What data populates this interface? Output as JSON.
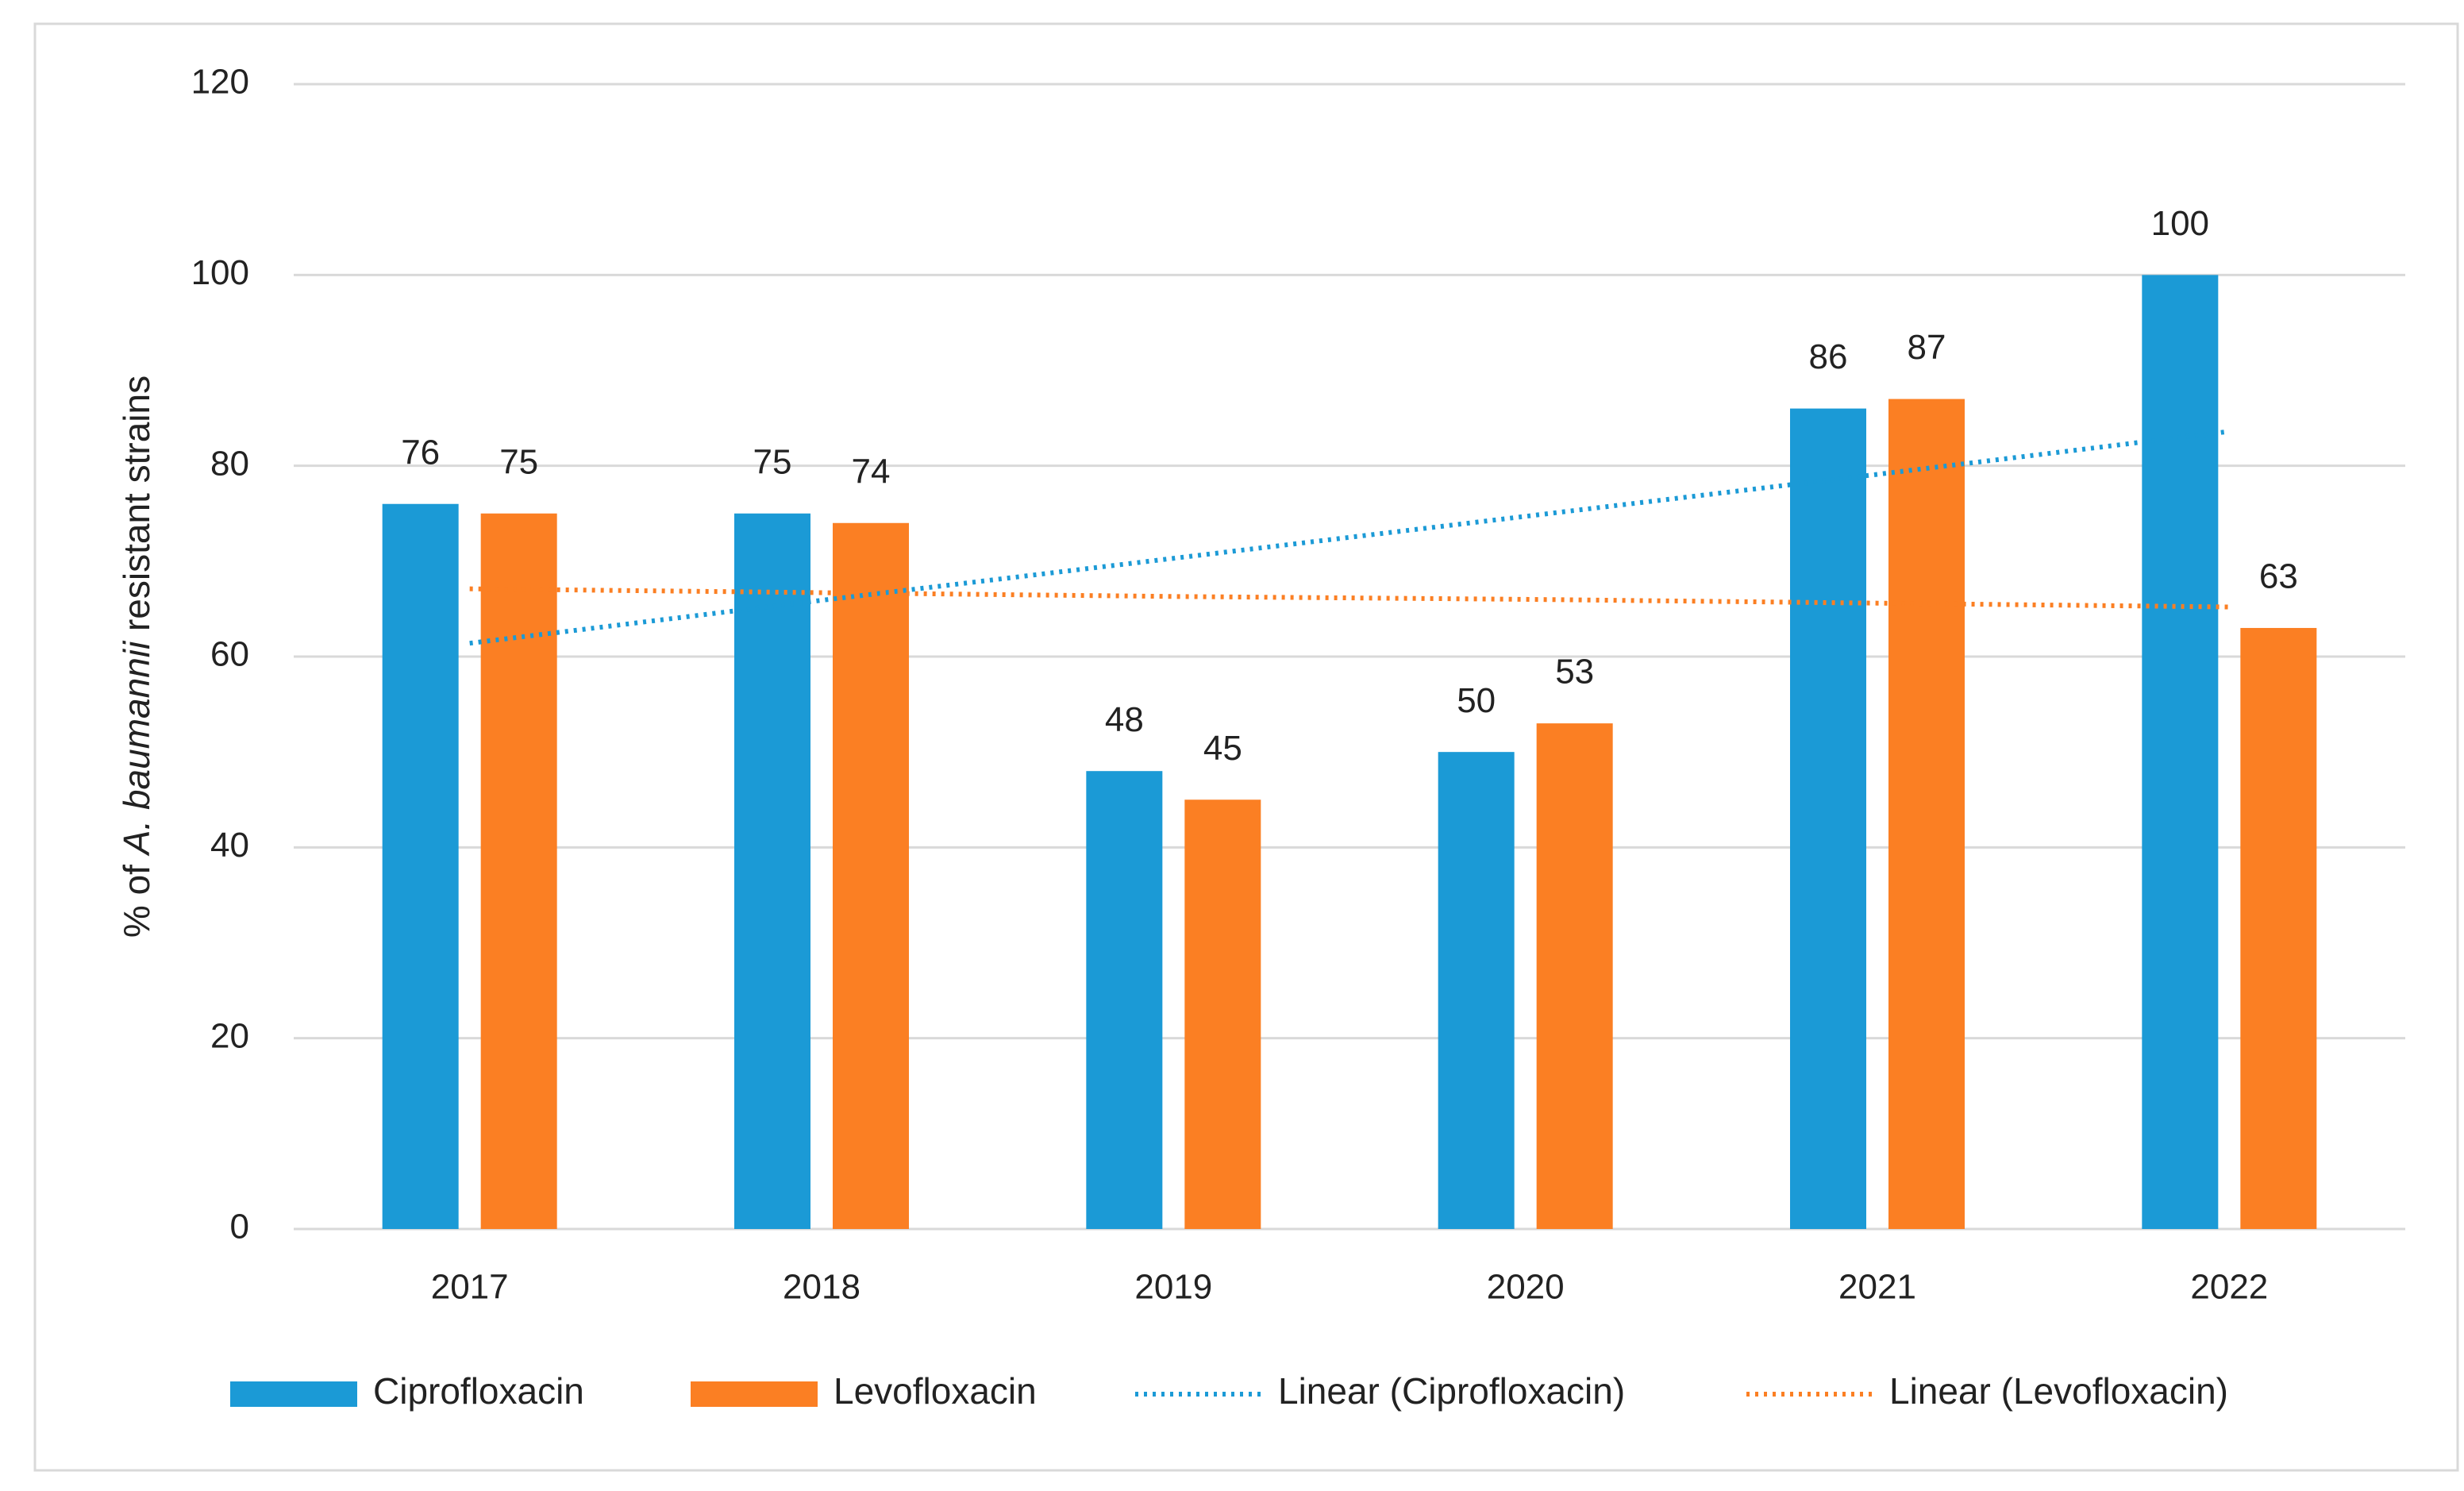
{
  "chart_data": {
    "type": "bar",
    "y_label": [
      "% of ",
      "A. baumannii",
      " resistant strains"
    ],
    "categories": [
      "2017",
      "2018",
      "2019",
      "2020",
      "2021",
      "2022"
    ],
    "series": [
      {
        "name": "Ciprofloxacin",
        "color": "#1b9ad6",
        "values": [
          76,
          75,
          48,
          50,
          86,
          100
        ]
      },
      {
        "name": "Levofloxacin",
        "color": "#fb7f23",
        "values": [
          75,
          74,
          45,
          53,
          87,
          63
        ]
      }
    ],
    "trendlines": [
      {
        "name": "Linear (Ciprofloxacin)",
        "color": "#1b9ad6",
        "values": [
          61.4,
          65.9,
          70.3,
          74.7,
          79.1,
          83.6
        ]
      },
      {
        "name": "Linear (Levofloxacin)",
        "color": "#fb7f23",
        "values": [
          67.1,
          66.7,
          66.3,
          66.0,
          65.6,
          65.2
        ]
      }
    ],
    "ylim": [
      0,
      120
    ],
    "yticks": [
      0,
      20,
      40,
      60,
      80,
      100,
      120
    ],
    "grid": true,
    "legend": "bottom"
  }
}
